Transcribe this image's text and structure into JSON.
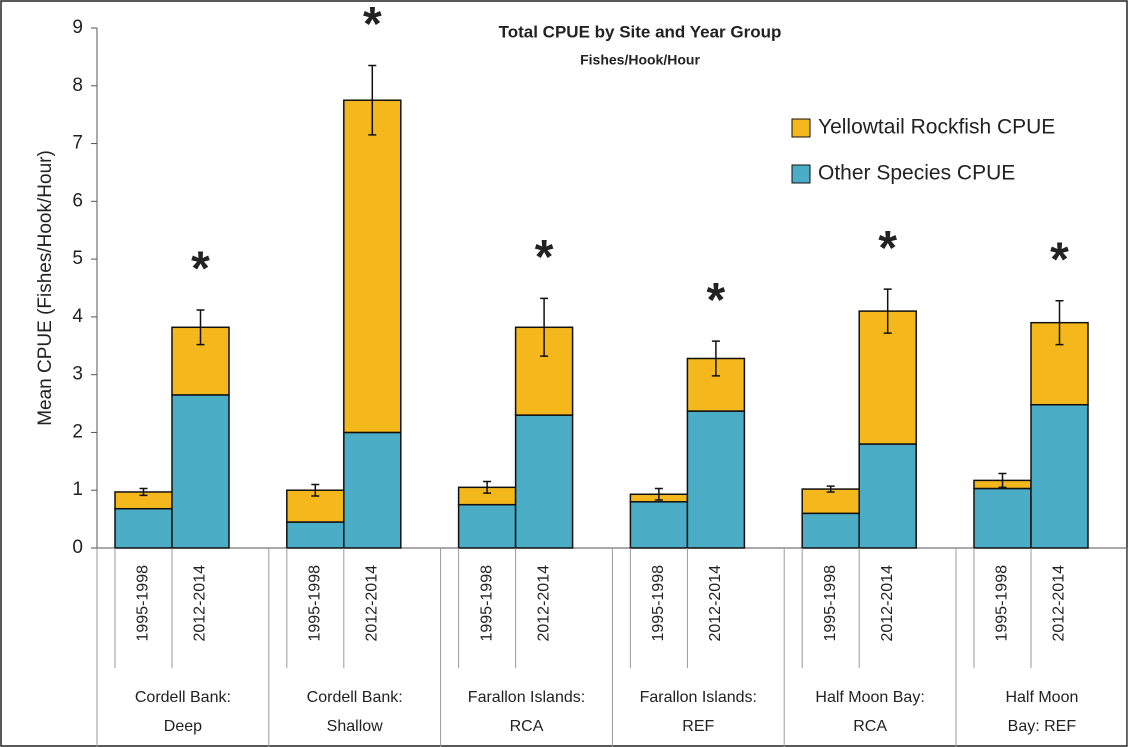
{
  "chart_data": {
    "type": "stacked-bar",
    "title": "Total CPUE by Site and Year Group",
    "subtitle": "Fishes/Hook/Hour",
    "y_label": "Mean CPUE (Fishes/Hook/Hour)",
    "categories": [
      "1995-1998",
      "2012-2014",
      "1995-1998",
      "2012-2014",
      "1995-1998",
      "2012-2014",
      "1995-1998",
      "2012-2014",
      "1995-1998",
      "2012-2014",
      "1995-1998",
      "2012-2014"
    ],
    "groups": [
      [
        "Cordell Bank:",
        "Deep"
      ],
      [
        "Cordell Bank:",
        "Shallow"
      ],
      [
        "Farallon Islands:",
        "RCA"
      ],
      [
        "Farallon Islands:",
        "REF"
      ],
      [
        "Half Moon Bay:",
        "RCA"
      ],
      [
        "Half Moon",
        "Bay: REF"
      ]
    ],
    "series": [
      {
        "name": "Other Species CPUE",
        "color": "#4bacc6",
        "values": [
          0.68,
          2.65,
          0.45,
          2.0,
          0.75,
          2.3,
          0.8,
          2.37,
          0.6,
          1.8,
          1.03,
          2.48
        ]
      },
      {
        "name": "Yellowtail Rockfish CPUE",
        "color": "#f4b81c",
        "values": [
          0.29,
          1.17,
          0.55,
          5.75,
          0.3,
          1.52,
          0.13,
          0.91,
          0.42,
          2.3,
          0.14,
          1.42
        ]
      }
    ],
    "errors": [
      0.06,
      0.3,
      0.1,
      0.6,
      0.1,
      0.5,
      0.1,
      0.3,
      0.05,
      0.38,
      0.12,
      0.38
    ],
    "significance": [
      null,
      "*",
      null,
      "*",
      null,
      "*",
      null,
      "*",
      null,
      "*",
      null,
      "*"
    ],
    "ylim": [
      0,
      9
    ],
    "yticks": [
      0,
      1,
      2,
      3,
      4,
      5,
      6,
      7,
      8,
      9
    ],
    "legend": "upper-right"
  }
}
